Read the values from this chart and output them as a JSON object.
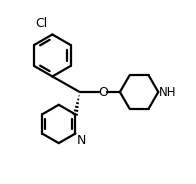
{
  "background_color": "#ffffff",
  "line_color": "#000000",
  "line_width": 1.6,
  "fig_width": 1.96,
  "fig_height": 1.84,
  "dpi": 100,
  "font_size_labels": 8.5,
  "Cl_label": "Cl",
  "O_label": "O",
  "N_pyridine_label": "N",
  "NH_label": "NH",
  "xlim": [
    0,
    1
  ],
  "ylim": [
    0,
    1
  ]
}
